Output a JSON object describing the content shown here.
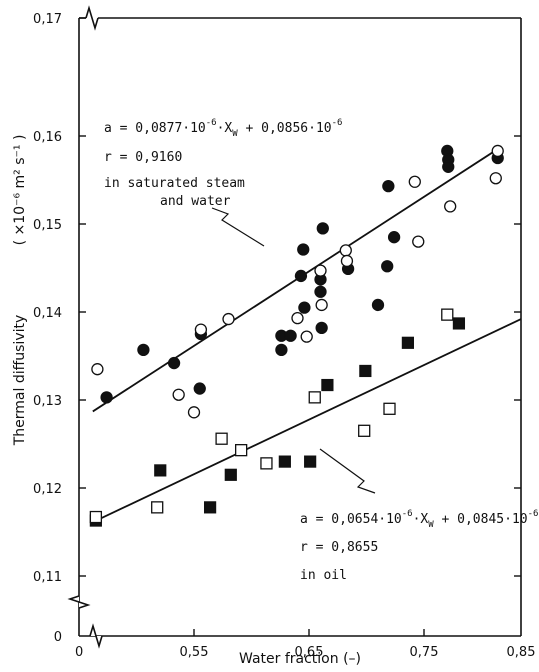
{
  "chart_data": {
    "type": "scatter",
    "xlabel": "Water fraction (–)",
    "ylabel": "Thermal diffusivity",
    "ylabel_unit": "( ×10⁻⁶ m² s⁻¹ )",
    "x_tick_labels": [
      "0",
      "0,55",
      "0,65",
      "0,75",
      "0,85"
    ],
    "x_ticks": [
      0.475,
      0.55,
      0.65,
      0.75,
      0.85
    ],
    "y_tick_labels": [
      "0",
      "0,11",
      "0,12",
      "0,13",
      "0,14",
      "0,15",
      "0,16",
      "0,17"
    ],
    "y_ticks": [
      0.1,
      0.11,
      0.12,
      0.13,
      0.14,
      0.15,
      0.16,
      0.17
    ],
    "xlim": [
      0.475,
      0.85
    ],
    "ylim": [
      0.1,
      0.17
    ],
    "axis_break": true,
    "grid": false,
    "series": [
      {
        "name": "in saturated steam and water",
        "style": "filled-circle",
        "points": [
          [
            0.493,
            0.1303
          ],
          [
            0.517,
            0.1357
          ],
          [
            0.537,
            0.1342
          ],
          [
            0.555,
            0.1313
          ],
          [
            0.556,
            0.1375
          ],
          [
            0.626,
            0.1357
          ],
          [
            0.626,
            0.1373
          ],
          [
            0.634,
            0.1373
          ],
          [
            0.643,
            0.1441
          ],
          [
            0.645,
            0.1471
          ],
          [
            0.646,
            0.1405
          ],
          [
            0.66,
            0.1437
          ],
          [
            0.66,
            0.1423
          ],
          [
            0.661,
            0.1382
          ],
          [
            0.662,
            0.1495
          ],
          [
            0.684,
            0.1449
          ],
          [
            0.71,
            0.1408
          ],
          [
            0.718,
            0.1452
          ],
          [
            0.719,
            0.1543
          ],
          [
            0.724,
            0.1485
          ],
          [
            0.774,
            0.1583
          ],
          [
            0.775,
            0.1573
          ],
          [
            0.775,
            0.1565
          ],
          [
            0.826,
            0.1575
          ]
        ]
      },
      {
        "name": "in saturated steam and water",
        "style": "open-circle",
        "points": [
          [
            0.487,
            0.1335
          ],
          [
            0.54,
            0.1306
          ],
          [
            0.55,
            0.1286
          ],
          [
            0.556,
            0.138
          ],
          [
            0.58,
            0.1392
          ],
          [
            0.64,
            0.1393
          ],
          [
            0.648,
            0.1372
          ],
          [
            0.66,
            0.1447
          ],
          [
            0.661,
            0.1408
          ],
          [
            0.682,
            0.147
          ],
          [
            0.683,
            0.1458
          ],
          [
            0.742,
            0.1548
          ],
          [
            0.745,
            0.148
          ],
          [
            0.777,
            0.152
          ],
          [
            0.824,
            0.1552
          ],
          [
            0.826,
            0.1583
          ]
        ]
      },
      {
        "name": "in oil",
        "style": "filled-square",
        "points": [
          [
            0.486,
            0.1163
          ],
          [
            0.528,
            0.122
          ],
          [
            0.564,
            0.1178
          ],
          [
            0.582,
            0.1215
          ],
          [
            0.629,
            0.123
          ],
          [
            0.651,
            0.123
          ],
          [
            0.666,
            0.1317
          ],
          [
            0.699,
            0.1333
          ],
          [
            0.736,
            0.1365
          ],
          [
            0.786,
            0.1387
          ]
        ]
      },
      {
        "name": "in oil",
        "style": "open-square",
        "points": [
          [
            0.486,
            0.1167
          ],
          [
            0.526,
            0.1178
          ],
          [
            0.574,
            0.1256
          ],
          [
            0.591,
            0.1243
          ],
          [
            0.613,
            0.1228
          ],
          [
            0.655,
            0.1303
          ],
          [
            0.698,
            0.1265
          ],
          [
            0.72,
            0.129
          ],
          [
            0.774,
            0.1397
          ]
        ]
      }
    ],
    "fit_lines": [
      {
        "name": "in saturated steam and water",
        "x": [
          0.484,
          0.83
        ],
        "y": [
          0.1287,
          0.1588
        ]
      },
      {
        "name": "in oil",
        "x": [
          0.485,
          0.85
        ],
        "y": [
          0.1162,
          0.1392
        ]
      }
    ],
    "annotations": {
      "steam": {
        "eq_prefix": "a = 0,0877·10",
        "eq_exp1": "-6",
        "eq_mid": "·X",
        "eq_sub": "W",
        "eq_mid2": " + 0,0856·10",
        "eq_exp2": "-6",
        "r": "r = 0,9160",
        "line1": "in saturated steam",
        "line2": "and water"
      },
      "oil": {
        "eq_prefix": "a = 0,0654·10",
        "eq_exp1": "-6",
        "eq_mid": "·X",
        "eq_sub": "W",
        "eq_mid2": " + 0,0845·10",
        "eq_exp2": "-6",
        "r": "r = 0,8655",
        "line1": "in oil"
      }
    }
  }
}
